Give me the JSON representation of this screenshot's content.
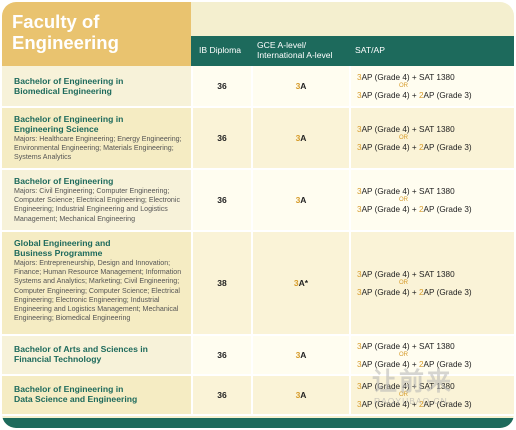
{
  "title": "Faculty of\nEngineering",
  "headers": {
    "ib": "IB Diploma",
    "gce": "GCE A-level/\nInternational A-level",
    "sat": "SAT/AP"
  },
  "sat_parts": {
    "ap3": "3",
    "ap_grade4": "AP (Grade 4) + SAT 1380",
    "ap_grade4_plus": "AP (Grade 4) + ",
    "two": "2",
    "ap_grade3": "AP (Grade 3)",
    "or": "OR"
  },
  "programmes": [
    {
      "name": "Bachelor of Engineering in\nBiomedical Engineering",
      "majors": "",
      "ib": "36",
      "gce": "3A"
    },
    {
      "name": "Bachelor of Engineering in\nEngineering Science",
      "majors": "Majors: Healthcare Engineering; Energy Engineering; Environmental Engineering; Materials Engineering; Systems Analytics",
      "ib": "36",
      "gce": "3A"
    },
    {
      "name": "Bachelor of Engineering",
      "majors": "Majors: Civil Engineering; Computer Engineering; Computer Science; Electrical Engineering; Electronic Engineering; Industrial Engineering and Logistics Management; Mechanical Engineering",
      "ib": "36",
      "gce": "3A"
    },
    {
      "name": "Global Engineering and\nBusiness Programme",
      "majors": "Majors: Entrepreneurship, Design and Innovation; Finance; Human Resource Management; Information Systems and Analytics; Marketing; Civil Engineering; Computer Engineering; Computer Science; Electrical Engineering; Electronic Engineering; Industrial Engineering and Logistics Management; Mechanical Engineering; Biomedical Engineering",
      "ib": "38",
      "gce": "3A*"
    },
    {
      "name": "Bachelor of Arts and Sciences in\nFinancial Technology",
      "majors": "",
      "ib": "36",
      "gce": "3A"
    },
    {
      "name": "Bachelor of Engineering in\nData Science and Engineering",
      "majors": "",
      "ib": "36",
      "gce": "3A"
    }
  ],
  "watermark": {
    "text": "让前来",
    "url": "RAOYUBAO.CN"
  },
  "colors": {
    "teal": "#1d6a5c",
    "gold": "#e9c36f",
    "accent": "#d69b2a",
    "cream": "#f4efcf"
  }
}
